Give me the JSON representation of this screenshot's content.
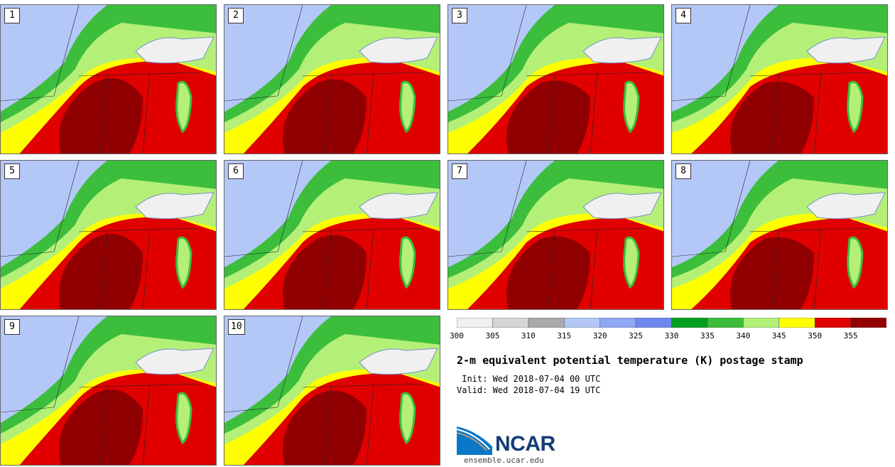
{
  "title": "2-m equivalent potential temperature (K) postage stamp",
  "init": " Init: Wed 2018-07-04 00 UTC",
  "valid": "Valid: Wed 2018-07-04 19 UTC",
  "logo": {
    "name": "NCAR",
    "url": "ensemble.ucar.edu"
  },
  "members": [
    "1",
    "2",
    "3",
    "4",
    "5",
    "6",
    "7",
    "8",
    "9",
    "10"
  ],
  "colorbar": {
    "levels": [
      300,
      305,
      310,
      315,
      320,
      325,
      330,
      335,
      340,
      345,
      350,
      355,
      360
    ],
    "tick_labels": [
      "300",
      "305",
      "310",
      "315",
      "320",
      "325",
      "330",
      "335",
      "340",
      "345",
      "350",
      "355"
    ],
    "colors": [
      "#f0f0f0",
      "#d6d6d6",
      "#aaaaaa",
      "#b4c8f8",
      "#8ea8f4",
      "#6e88ee",
      "#00a01e",
      "#3cbe3c",
      "#b4f078",
      "#ffff00",
      "#e00000",
      "#900000"
    ]
  }
}
